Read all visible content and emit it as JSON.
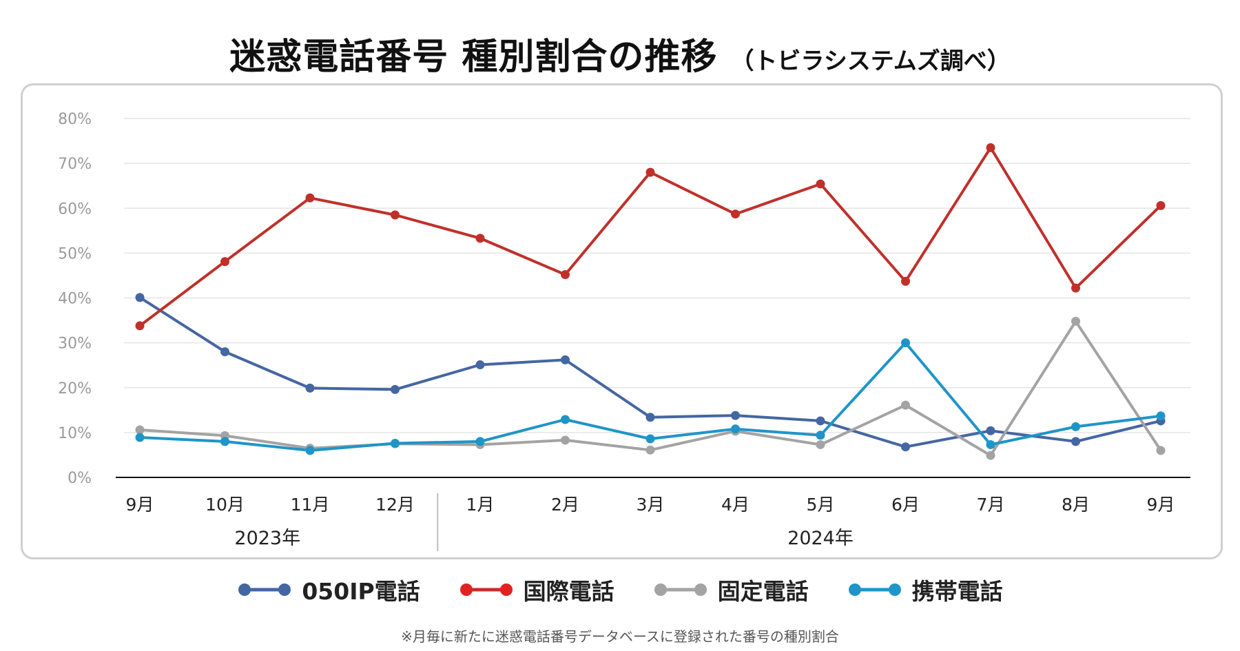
{
  "title": "迷惑電話番号 種別割合の推移",
  "subtitle": "（トビラシステムズ調べ）",
  "footnote": "※月毎に新たに迷惑電話番号データベースに登録された番号の種別割合",
  "chart_data": {
    "type": "line",
    "title": "迷惑電話番号 種別割合の推移",
    "xlabel": "",
    "ylabel": "",
    "ylim": [
      0,
      80
    ],
    "y_ticks": [
      0,
      10,
      20,
      30,
      40,
      50,
      60,
      70,
      80
    ],
    "y_tick_labels": [
      "0%",
      "10%",
      "20%",
      "30%",
      "40%",
      "50%",
      "60%",
      "70%",
      "80%"
    ],
    "grid": true,
    "legend_position": "bottom",
    "categories": [
      "9月",
      "10月",
      "11月",
      "12月",
      "1月",
      "2月",
      "3月",
      "4月",
      "5月",
      "6月",
      "7月",
      "8月",
      "9月"
    ],
    "year_groups": [
      {
        "label": "2023年",
        "span": [
          0,
          3
        ]
      },
      {
        "label": "2024年",
        "span": [
          4,
          12
        ]
      }
    ],
    "series": [
      {
        "name": "050IP電話",
        "color": "#4466a3",
        "values": [
          40.1,
          28.0,
          19.9,
          19.6,
          25.1,
          26.2,
          13.4,
          13.8,
          12.6,
          6.8,
          10.4,
          8.0,
          12.6
        ]
      },
      {
        "name": "国際電話",
        "color": "#c0302a",
        "values": [
          33.8,
          48.1,
          62.3,
          58.5,
          53.3,
          45.2,
          68.0,
          58.7,
          65.4,
          43.7,
          73.5,
          42.2,
          60.6
        ]
      },
      {
        "name": "固定電話",
        "color": "#a3a3a3",
        "values": [
          10.6,
          9.3,
          6.5,
          7.5,
          7.3,
          8.3,
          6.1,
          10.3,
          7.3,
          16.1,
          4.9,
          34.8,
          6.0
        ]
      },
      {
        "name": "携帯電話",
        "color": "#1e95c8",
        "values": [
          8.9,
          8.0,
          6.0,
          7.6,
          8.0,
          12.9,
          8.6,
          10.8,
          9.4,
          30.0,
          7.3,
          11.3,
          13.7
        ]
      }
    ]
  }
}
